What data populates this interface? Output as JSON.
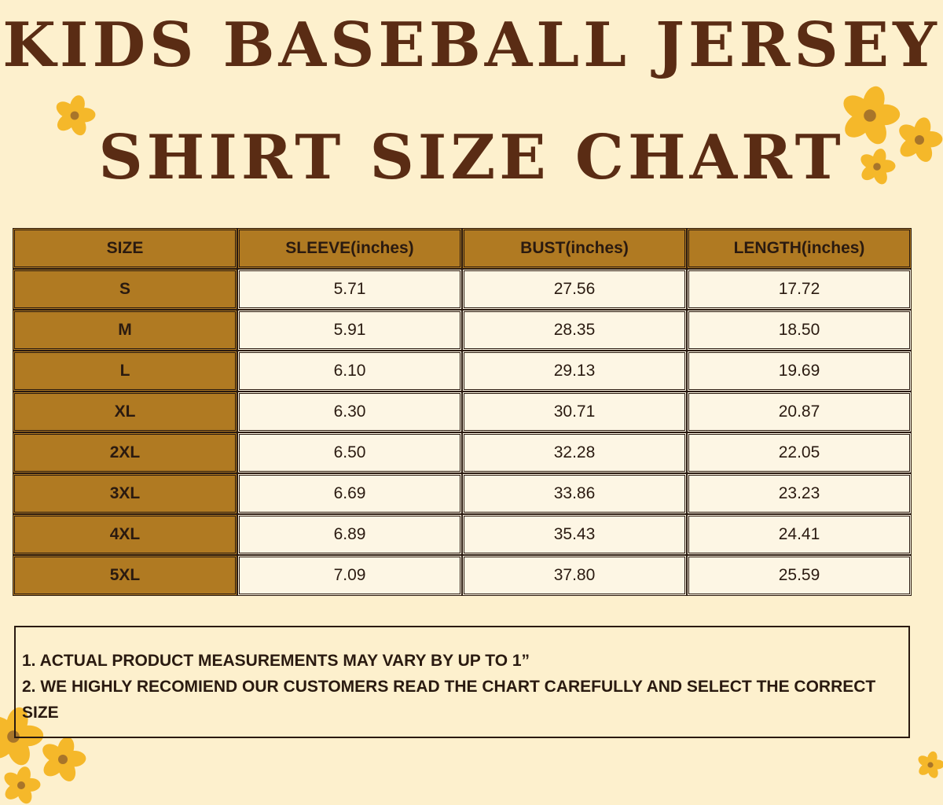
{
  "title_line1": "KIDS BASEBALL JERSEY",
  "title_line2": "SHIRT SIZE CHART",
  "colors": {
    "background": "#fdf0cd",
    "title": "#5a2c14",
    "header_fill": "#b07a22",
    "cell_fill": "#fdf6e4",
    "border": "#2a1a10",
    "flower_petal": "#f5b82a",
    "flower_center": "#a8752a"
  },
  "table": {
    "headers": [
      "SIZE",
      "SLEEVE(inches)",
      "BUST(inches)",
      "LENGTH(inches)"
    ],
    "rows": [
      [
        "S",
        "5.71",
        "27.56",
        "17.72"
      ],
      [
        "M",
        "5.91",
        "28.35",
        "18.50"
      ],
      [
        "L",
        "6.10",
        "29.13",
        "19.69"
      ],
      [
        "XL",
        "6.30",
        "30.71",
        "20.87"
      ],
      [
        "2XL",
        "6.50",
        "32.28",
        "22.05"
      ],
      [
        "3XL",
        "6.69",
        "33.86",
        "23.23"
      ],
      [
        "4XL",
        "6.89",
        "35.43",
        "24.41"
      ],
      [
        "5XL",
        "7.09",
        "37.80",
        "25.59"
      ]
    ]
  },
  "notes": [
    "1. ACTUAL PRODUCT MEASUREMENTS MAY VARY BY UP TO 1”",
    "2. WE HIGHLY RECOMIEND OUR CUSTOMERS READ THE CHART CAREFULLY AND SELECT THE CORRECT SIZE"
  ],
  "decorations": [
    "flower-icon"
  ]
}
